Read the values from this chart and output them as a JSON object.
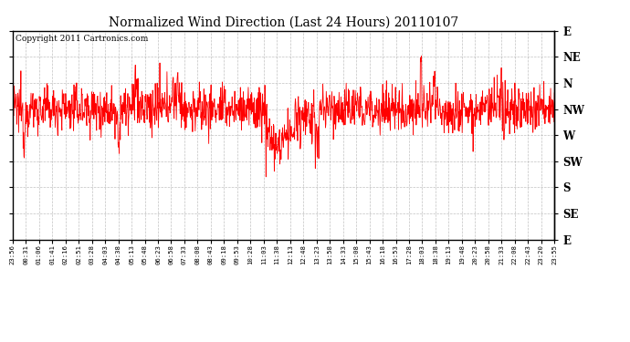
{
  "title": "Normalized Wind Direction (Last 24 Hours) 20110107",
  "copyright": "Copyright 2011 Cartronics.com",
  "ylabel_right": [
    "E",
    "NE",
    "N",
    "NW",
    "W",
    "SW",
    "S",
    "SE",
    "E"
  ],
  "ytick_vals": [
    8,
    7,
    6,
    5,
    4,
    3,
    2,
    1,
    0
  ],
  "ylim": [
    0,
    8
  ],
  "line_color": "#ff0000",
  "bg_color": "#ffffff",
  "grid_color": "#999999",
  "xtick_labels": [
    "23:56",
    "00:31",
    "01:06",
    "01:41",
    "02:16",
    "02:51",
    "03:28",
    "04:03",
    "04:38",
    "05:13",
    "05:48",
    "06:23",
    "06:58",
    "07:33",
    "08:08",
    "08:43",
    "09:18",
    "09:53",
    "10:28",
    "11:03",
    "11:38",
    "12:13",
    "12:48",
    "13:23",
    "13:58",
    "14:33",
    "15:08",
    "15:43",
    "16:18",
    "16:53",
    "17:28",
    "18:03",
    "18:38",
    "19:13",
    "19:48",
    "20:23",
    "20:58",
    "21:33",
    "22:08",
    "22:43",
    "23:20",
    "23:55"
  ],
  "n_xticks": 42,
  "nw_val": 5.0,
  "seed": 12345,
  "title_fontsize": 10,
  "copyright_fontsize": 6.5,
  "xtick_fontsize": 5.2,
  "ytick_fontsize": 8.5
}
